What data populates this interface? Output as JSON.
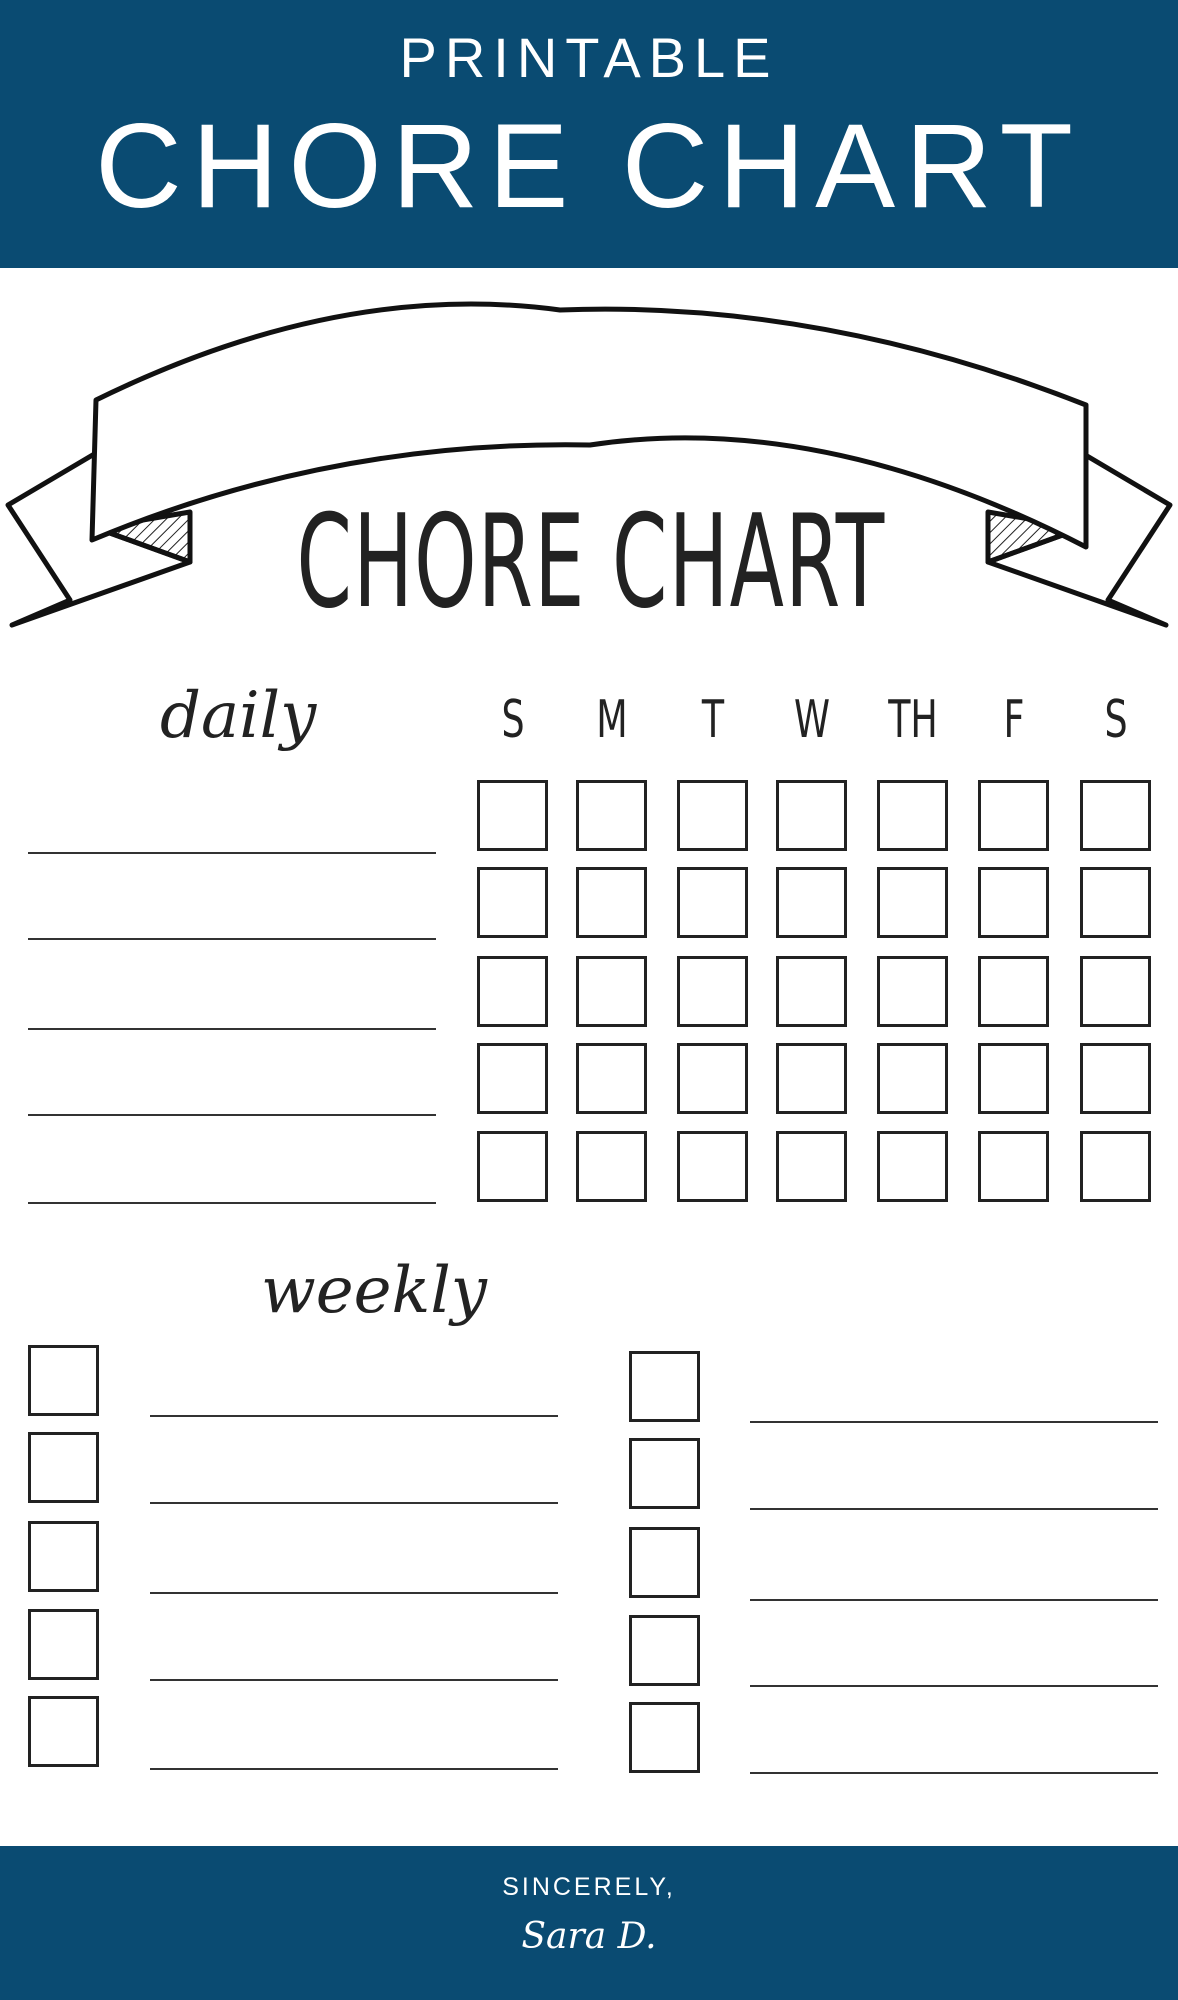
{
  "header": {
    "subtitle": "PRINTABLE",
    "title": "CHORE CHART"
  },
  "chart": {
    "title": "CHORE CHART",
    "daily_label": "daily",
    "weekly_label": "weekly",
    "days": [
      "S",
      "M",
      "T",
      "W",
      "TH",
      "F",
      "S"
    ],
    "daily_rows": 5,
    "weekly_rows_per_column": 5
  },
  "footer": {
    "line1": "SINCERELY,",
    "signature": "Sara D."
  },
  "colors": {
    "brand": "#0a4b72",
    "ink": "#222222"
  }
}
